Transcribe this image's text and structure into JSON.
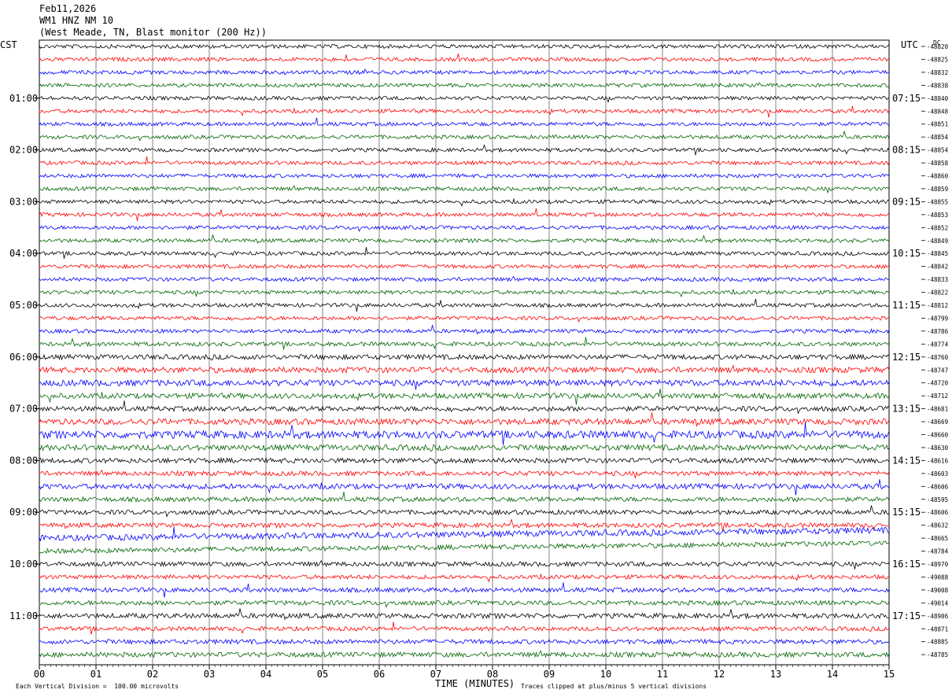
{
  "header": {
    "date": "Feb11,2026",
    "station": "WM1 HNZ NM 10",
    "location": "(West Meade, TN, Blast monitor (200 Hz))"
  },
  "left_tz": "CST",
  "right_tz": "UTC",
  "dc_label": "DC",
  "footer": {
    "left_note": "Each Vertical Division =  100.00 microvolts",
    "xlabel": "TIME (MINUTES)",
    "right_note": "Traces clipped at plus/minus 5 vertical divisions"
  },
  "colors": [
    "#000000",
    "#ff0000",
    "#0000ff",
    "#006400"
  ],
  "chart_data": {
    "type": "line",
    "title": "WM1 HNZ NM 10",
    "xlabel": "TIME (MINUTES)",
    "xlim": [
      0,
      15
    ],
    "x_ticks": [
      "00",
      "01",
      "02",
      "03",
      "04",
      "05",
      "06",
      "07",
      "08",
      "09",
      "10",
      "11",
      "12",
      "13",
      "14",
      "15"
    ],
    "left_time_labels": [
      "01:00",
      "02:00",
      "03:00",
      "04:00",
      "05:00",
      "06:00",
      "07:00",
      "08:00",
      "09:00",
      "10:00",
      "11:00"
    ],
    "right_time_labels": [
      "07:15",
      "08:15",
      "09:15",
      "10:15",
      "11:15",
      "12:15",
      "13:15",
      "14:15",
      "15:15",
      "16:15",
      "17:15"
    ],
    "rows_per_hour": 4,
    "row_count": 48,
    "dc_values": [
      "-48820",
      "-48825",
      "-48832",
      "-48838",
      "-48840",
      "-48848",
      "-48851",
      "-48854",
      "-48854",
      "-48858",
      "-48860",
      "-48859",
      "-48855",
      "-48853",
      "-48852",
      "-48849",
      "-48845",
      "-48842",
      "-48833",
      "-48822",
      "-48812",
      "-48799",
      "-48786",
      "-48774",
      "-48760",
      "-48747",
      "-48720",
      "-48712",
      "-48681",
      "-48669",
      "-48660",
      "-48630",
      "-48616",
      "-48603",
      "-48606",
      "-48595",
      "-48606",
      "-48632",
      "-48665",
      "-48784",
      "-48970",
      "-49088",
      "-49008",
      "-49014",
      "-48906",
      "-48871",
      "-48885",
      "-48785"
    ],
    "amplitude_rows": [
      1,
      1,
      1,
      1,
      1,
      1,
      1,
      1,
      1,
      1,
      1,
      1,
      1,
      1,
      1,
      1,
      1,
      1,
      1,
      1,
      1,
      1,
      1,
      1.1,
      1.3,
      1.5,
      1.6,
      1.4,
      1.3,
      1.6,
      2.0,
      1.5,
      1.3,
      1.2,
      1.4,
      1.2,
      1.2,
      1.2,
      1.6,
      1.3,
      1.2,
      1.1,
      1.2,
      1.2,
      1.3,
      1.1,
      1.2,
      1.3
    ]
  }
}
